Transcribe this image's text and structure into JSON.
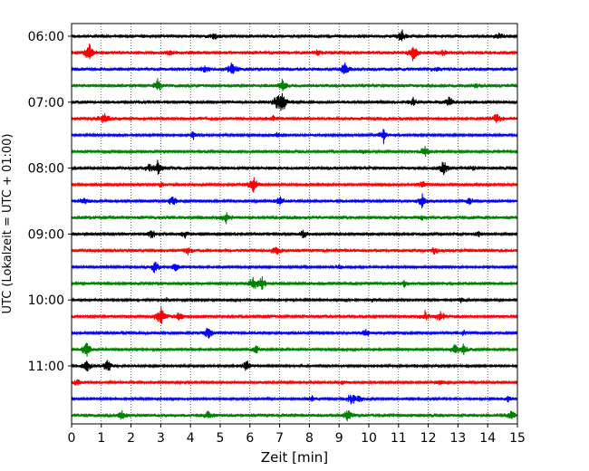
{
  "chart_data": {
    "type": "line",
    "title": "",
    "xlabel": "Zeit  [min]",
    "ylabel": "UTC (Lokalzeit = UTC + 01:00)",
    "xlim": [
      0,
      15
    ],
    "xticks": [
      0,
      1,
      2,
      3,
      4,
      5,
      6,
      7,
      8,
      9,
      10,
      11,
      12,
      13,
      14,
      15
    ],
    "ytick_labels": [
      "06:00",
      "07:00",
      "08:00",
      "09:00",
      "10:00",
      "11:00"
    ],
    "trace_interval_minutes": 15,
    "start_time": "06:00",
    "grid": "vertical dotted",
    "color_cycle": [
      "#000000",
      "#ff0000",
      "#0000ff",
      "#008000"
    ],
    "traces": [
      {
        "start": "06:00",
        "events": [
          [
            4.8,
            4
          ],
          [
            11.1,
            9
          ],
          [
            14.4,
            5
          ]
        ]
      },
      {
        "start": "06:15",
        "events": [
          [
            0.6,
            12
          ],
          [
            3.3,
            3
          ],
          [
            8.3,
            3
          ],
          [
            11.5,
            12
          ],
          [
            12.5,
            3
          ]
        ]
      },
      {
        "start": "06:30",
        "events": [
          [
            4.5,
            4
          ],
          [
            5.4,
            10
          ],
          [
            9.2,
            9
          ],
          [
            12.3,
            3
          ]
        ]
      },
      {
        "start": "06:45",
        "events": [
          [
            2.9,
            9
          ],
          [
            7.1,
            7
          ],
          [
            13.6,
            3
          ]
        ]
      },
      {
        "start": "07:00",
        "events": [
          [
            6.9,
            10
          ],
          [
            7.1,
            12
          ],
          [
            11.5,
            5
          ],
          [
            12.7,
            6
          ]
        ]
      },
      {
        "start": "07:15",
        "events": [
          [
            1.1,
            8
          ],
          [
            6.8,
            3
          ],
          [
            14.3,
            6
          ]
        ]
      },
      {
        "start": "07:30",
        "events": [
          [
            4.1,
            5
          ],
          [
            6.9,
            3
          ],
          [
            10.5,
            10
          ]
        ]
      },
      {
        "start": "07:45",
        "events": [
          [
            9.8,
            3
          ],
          [
            11.9,
            9
          ]
        ]
      },
      {
        "start": "08:00",
        "events": [
          [
            2.6,
            5
          ],
          [
            2.9,
            9
          ],
          [
            12.5,
            9
          ],
          [
            13.5,
            3
          ]
        ]
      },
      {
        "start": "08:15",
        "events": [
          [
            3.0,
            3
          ],
          [
            6.1,
            12
          ],
          [
            11.8,
            5
          ]
        ]
      },
      {
        "start": "08:30",
        "events": [
          [
            0.4,
            5
          ],
          [
            3.4,
            8
          ],
          [
            7.0,
            6
          ],
          [
            11.8,
            10
          ],
          [
            13.4,
            5
          ]
        ]
      },
      {
        "start": "08:45",
        "events": [
          [
            5.2,
            7
          ],
          [
            11.8,
            3
          ]
        ]
      },
      {
        "start": "09:00",
        "events": [
          [
            2.7,
            7
          ],
          [
            3.8,
            5
          ],
          [
            7.8,
            8
          ],
          [
            13.7,
            3
          ]
        ]
      },
      {
        "start": "09:15",
        "events": [
          [
            3.9,
            5
          ],
          [
            6.9,
            6
          ],
          [
            12.2,
            4
          ]
        ]
      },
      {
        "start": "09:30",
        "events": [
          [
            2.8,
            9
          ],
          [
            3.5,
            6
          ],
          [
            9.0,
            4
          ]
        ]
      },
      {
        "start": "09:45",
        "events": [
          [
            6.1,
            10
          ],
          [
            6.4,
            8
          ],
          [
            11.2,
            4
          ]
        ]
      },
      {
        "start": "10:00",
        "events": [
          [
            3.2,
            3
          ],
          [
            10.1,
            3
          ],
          [
            13.1,
            3
          ]
        ]
      },
      {
        "start": "10:15",
        "events": [
          [
            3.0,
            13
          ],
          [
            3.6,
            5
          ],
          [
            11.9,
            6
          ],
          [
            12.4,
            7
          ]
        ]
      },
      {
        "start": "10:30",
        "events": [
          [
            4.6,
            9
          ],
          [
            9.9,
            5
          ],
          [
            13.2,
            3
          ]
        ]
      },
      {
        "start": "10:45",
        "events": [
          [
            0.5,
            11
          ],
          [
            6.2,
            6
          ],
          [
            12.9,
            8
          ],
          [
            13.2,
            7
          ]
        ]
      },
      {
        "start": "11:00",
        "events": [
          [
            0.5,
            11
          ],
          [
            1.2,
            12
          ],
          [
            5.9,
            10
          ]
        ]
      },
      {
        "start": "11:15",
        "events": [
          [
            0.2,
            5
          ],
          [
            9.1,
            3
          ],
          [
            12.4,
            3
          ]
        ]
      },
      {
        "start": "11:30",
        "events": [
          [
            8.1,
            4
          ],
          [
            9.4,
            9
          ],
          [
            9.7,
            6
          ],
          [
            14.7,
            5
          ]
        ]
      },
      {
        "start": "11:45",
        "events": [
          [
            1.7,
            6
          ],
          [
            4.6,
            5
          ],
          [
            9.3,
            8
          ],
          [
            14.8,
            6
          ]
        ]
      }
    ]
  }
}
